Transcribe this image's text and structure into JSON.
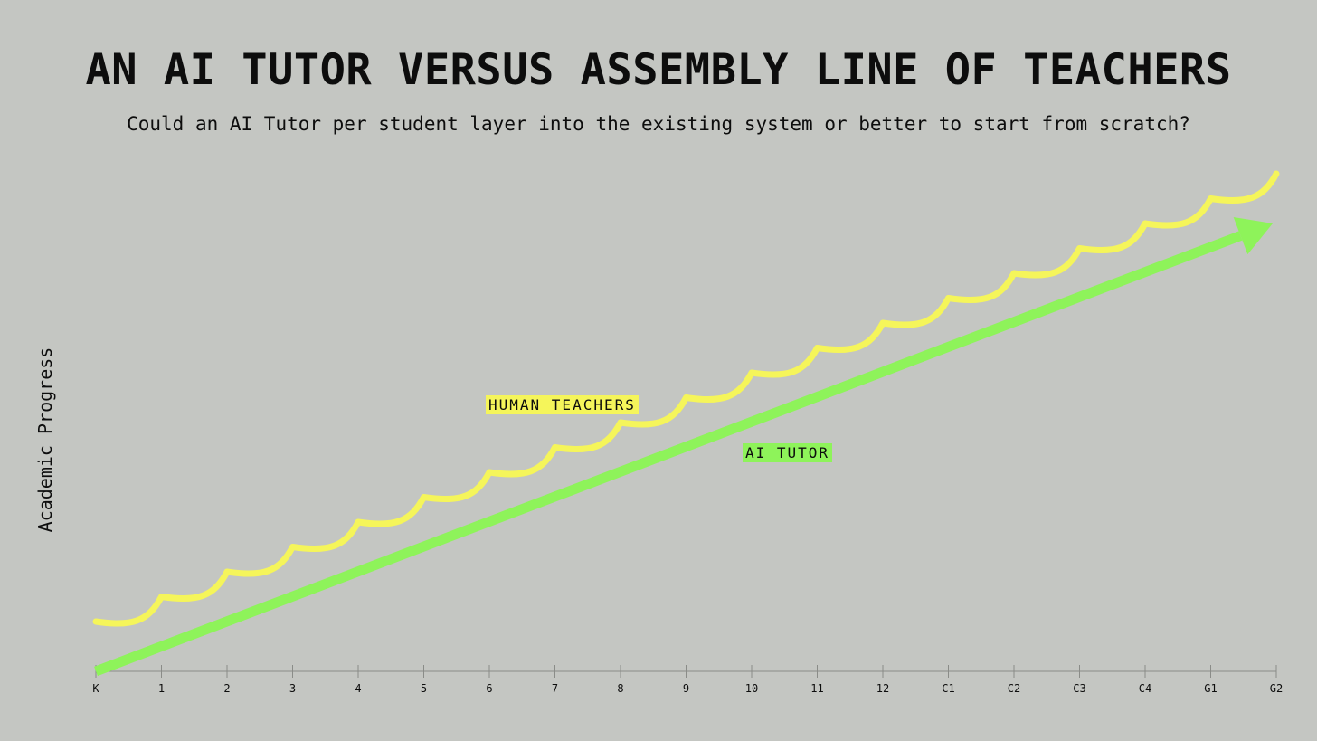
{
  "title": "AN AI TUTOR VERSUS ASSEMBLY LINE OF TEACHERS",
  "subtitle": "Could an AI Tutor per student layer into the existing system or better to start from scratch?",
  "chart_data": {
    "type": "line",
    "ylabel": "Academic Progress",
    "xlabel": "",
    "categories": [
      "K",
      "1",
      "2",
      "3",
      "4",
      "5",
      "6",
      "7",
      "8",
      "9",
      "10",
      "11",
      "12",
      "C1",
      "C2",
      "C3",
      "C4",
      "G1",
      "G2"
    ],
    "series": [
      {
        "name": "HUMAN TEACHERS",
        "color": "#f5f55a",
        "shape": "scalloped-step",
        "start": 1.0,
        "end": 10.0
      },
      {
        "name": "AI TUTOR",
        "color": "#8ef35a",
        "shape": "straight-arrow",
        "start": 0.0,
        "end": 9.0
      }
    ],
    "grid": false,
    "legend": "inline-labels"
  }
}
